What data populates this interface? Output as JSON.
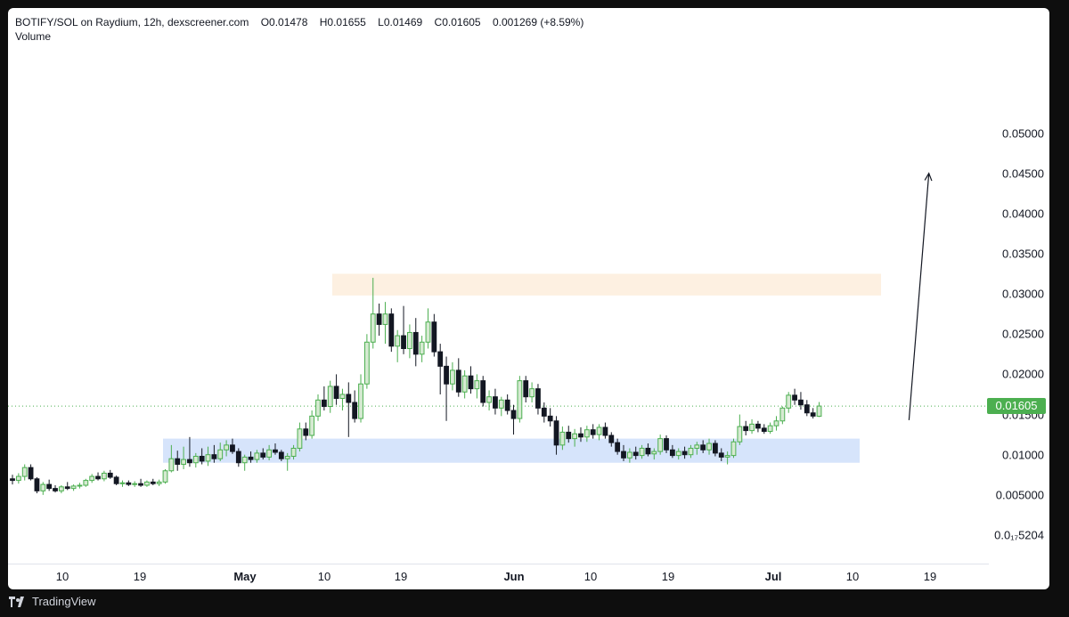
{
  "legend": {
    "symbol": "BOTIFY/SOL on Raydium, 12h, dexscreener.com",
    "open": "O0.01478",
    "high": "H0.01655",
    "low": "L0.01469",
    "close": "C0.01605",
    "change": "0.001269 (+8.59%)",
    "volume_label": "Volume"
  },
  "footer": {
    "brand": "TradingView"
  },
  "colors": {
    "up": "#4caf50",
    "down": "#131722",
    "up_body": "#d6ead2",
    "resistance_zone": "#fdf0e1",
    "support_zone": "#d6e4fb"
  },
  "chart_data": {
    "type": "candlestick",
    "y_ticks": [
      "0.05000",
      "0.04500",
      "0.04000",
      "0.03500",
      "0.03000",
      "0.02500",
      "0.02000",
      "0.01500",
      "0.01000",
      "0.005000",
      "0.0₁₇5204"
    ],
    "y_tick_values": [
      0.05,
      0.045,
      0.04,
      0.035,
      0.03,
      0.025,
      0.02,
      0.015,
      0.01,
      0.005,
      0
    ],
    "x_ticks": [
      {
        "label": "10",
        "major": false
      },
      {
        "label": "19",
        "major": false
      },
      {
        "label": "May",
        "major": true
      },
      {
        "label": "10",
        "major": false
      },
      {
        "label": "19",
        "major": false
      },
      {
        "label": "Jun",
        "major": true
      },
      {
        "label": "10",
        "major": false
      },
      {
        "label": "19",
        "major": false
      },
      {
        "label": "Jul",
        "major": true
      },
      {
        "label": "10",
        "major": false
      },
      {
        "label": "19",
        "major": false
      }
    ],
    "last_price": "0.01605",
    "last_price_value": 0.01605,
    "zones": [
      {
        "name": "resistance",
        "low": 0.0298,
        "high": 0.0325
      },
      {
        "name": "support",
        "low": 0.009,
        "high": 0.012
      }
    ],
    "candles": [
      [
        0.007,
        0.0075,
        0.0063,
        0.0068
      ],
      [
        0.0068,
        0.0077,
        0.0064,
        0.0073
      ],
      [
        0.0073,
        0.0088,
        0.0068,
        0.0084
      ],
      [
        0.0084,
        0.0088,
        0.0068,
        0.007
      ],
      [
        0.007,
        0.0072,
        0.0052,
        0.0055
      ],
      [
        0.0055,
        0.0066,
        0.005,
        0.0063
      ],
      [
        0.0063,
        0.0069,
        0.0055,
        0.0058
      ],
      [
        0.0058,
        0.0062,
        0.0053,
        0.0055
      ],
      [
        0.0055,
        0.0062,
        0.0052,
        0.006
      ],
      [
        0.006,
        0.0066,
        0.0056,
        0.0058
      ],
      [
        0.0058,
        0.0063,
        0.0055,
        0.0061
      ],
      [
        0.0061,
        0.0065,
        0.0058,
        0.0062
      ],
      [
        0.0062,
        0.007,
        0.006,
        0.0068
      ],
      [
        0.0068,
        0.0076,
        0.0065,
        0.0073
      ],
      [
        0.0073,
        0.0078,
        0.0068,
        0.007
      ],
      [
        0.007,
        0.008,
        0.0067,
        0.0077
      ],
      [
        0.0077,
        0.0081,
        0.007,
        0.0072
      ],
      [
        0.0072,
        0.0074,
        0.0062,
        0.0064
      ],
      [
        0.0064,
        0.0068,
        0.006,
        0.0065
      ],
      [
        0.0065,
        0.0068,
        0.0061,
        0.0063
      ],
      [
        0.0063,
        0.0067,
        0.006,
        0.0064
      ],
      [
        0.0064,
        0.007,
        0.006,
        0.0062
      ],
      [
        0.0062,
        0.0068,
        0.006,
        0.0066
      ],
      [
        0.0066,
        0.007,
        0.0062,
        0.0064
      ],
      [
        0.0064,
        0.0069,
        0.0061,
        0.0066
      ],
      [
        0.0066,
        0.0082,
        0.0064,
        0.008
      ],
      [
        0.008,
        0.0112,
        0.0078,
        0.0095
      ],
      [
        0.0095,
        0.0105,
        0.008,
        0.0088
      ],
      [
        0.0088,
        0.011,
        0.0082,
        0.0094
      ],
      [
        0.0094,
        0.0122,
        0.0085,
        0.009
      ],
      [
        0.009,
        0.0102,
        0.0084,
        0.0098
      ],
      [
        0.0098,
        0.0108,
        0.0088,
        0.0092
      ],
      [
        0.0092,
        0.011,
        0.0086,
        0.01
      ],
      [
        0.01,
        0.0112,
        0.009,
        0.0095
      ],
      [
        0.0095,
        0.0115,
        0.0092,
        0.0106
      ],
      [
        0.0106,
        0.0118,
        0.0098,
        0.0112
      ],
      [
        0.0112,
        0.012,
        0.0101,
        0.0104
      ],
      [
        0.0104,
        0.0108,
        0.0085,
        0.009
      ],
      [
        0.009,
        0.01,
        0.008,
        0.0097
      ],
      [
        0.0097,
        0.0104,
        0.009,
        0.0094
      ],
      [
        0.0094,
        0.0106,
        0.009,
        0.0102
      ],
      [
        0.0102,
        0.0108,
        0.0094,
        0.0097
      ],
      [
        0.0097,
        0.0112,
        0.0093,
        0.0106
      ],
      [
        0.0106,
        0.0114,
        0.01,
        0.0103
      ],
      [
        0.0103,
        0.0106,
        0.0092,
        0.0095
      ],
      [
        0.0095,
        0.0102,
        0.008,
        0.0098
      ],
      [
        0.0098,
        0.0112,
        0.0094,
        0.0108
      ],
      [
        0.0108,
        0.014,
        0.0104,
        0.0132
      ],
      [
        0.0132,
        0.014,
        0.0118,
        0.0124
      ],
      [
        0.0124,
        0.0155,
        0.012,
        0.0148
      ],
      [
        0.0148,
        0.0175,
        0.0142,
        0.0168
      ],
      [
        0.0168,
        0.0185,
        0.0155,
        0.016
      ],
      [
        0.016,
        0.0192,
        0.0152,
        0.0185
      ],
      [
        0.0185,
        0.02,
        0.0162,
        0.017
      ],
      [
        0.017,
        0.0182,
        0.0155,
        0.0175
      ],
      [
        0.0175,
        0.019,
        0.0122,
        0.0165
      ],
      [
        0.0165,
        0.018,
        0.014,
        0.0145
      ],
      [
        0.0145,
        0.02,
        0.014,
        0.0188
      ],
      [
        0.0188,
        0.025,
        0.0182,
        0.024
      ],
      [
        0.024,
        0.032,
        0.0232,
        0.0275
      ],
      [
        0.0275,
        0.0288,
        0.0248,
        0.0262
      ],
      [
        0.0262,
        0.029,
        0.0238,
        0.0275
      ],
      [
        0.0275,
        0.0282,
        0.0228,
        0.0235
      ],
      [
        0.0235,
        0.0255,
        0.0215,
        0.0248
      ],
      [
        0.0248,
        0.0285,
        0.0225,
        0.0232
      ],
      [
        0.0232,
        0.0262,
        0.022,
        0.0252
      ],
      [
        0.0252,
        0.027,
        0.021,
        0.0225
      ],
      [
        0.0225,
        0.0248,
        0.0215,
        0.024
      ],
      [
        0.024,
        0.0282,
        0.0232,
        0.0265
      ],
      [
        0.0265,
        0.0275,
        0.0222,
        0.0228
      ],
      [
        0.0228,
        0.0238,
        0.0175,
        0.021
      ],
      [
        0.021,
        0.0222,
        0.0142,
        0.0188
      ],
      [
        0.0188,
        0.0215,
        0.018,
        0.0205
      ],
      [
        0.0205,
        0.022,
        0.0172,
        0.0178
      ],
      [
        0.0178,
        0.0205,
        0.017,
        0.0198
      ],
      [
        0.0198,
        0.021,
        0.0176,
        0.0182
      ],
      [
        0.0182,
        0.02,
        0.017,
        0.0192
      ],
      [
        0.0192,
        0.0198,
        0.016,
        0.0165
      ],
      [
        0.0165,
        0.018,
        0.0155,
        0.0172
      ],
      [
        0.0172,
        0.0182,
        0.015,
        0.0158
      ],
      [
        0.0158,
        0.0172,
        0.0148,
        0.0168
      ],
      [
        0.0168,
        0.0175,
        0.015,
        0.0155
      ],
      [
        0.0155,
        0.0162,
        0.0125,
        0.0145
      ],
      [
        0.0145,
        0.0198,
        0.014,
        0.0192
      ],
      [
        0.0192,
        0.0198,
        0.0165,
        0.0172
      ],
      [
        0.0172,
        0.019,
        0.0165,
        0.0182
      ],
      [
        0.0182,
        0.0188,
        0.015,
        0.0158
      ],
      [
        0.0158,
        0.0165,
        0.014,
        0.0148
      ],
      [
        0.0148,
        0.0158,
        0.0135,
        0.0142
      ],
      [
        0.0142,
        0.0148,
        0.01,
        0.0112
      ],
      [
        0.0112,
        0.0135,
        0.0106,
        0.0128
      ],
      [
        0.0128,
        0.0136,
        0.0115,
        0.012
      ],
      [
        0.012,
        0.0132,
        0.011,
        0.0126
      ],
      [
        0.0126,
        0.0134,
        0.0116,
        0.0122
      ],
      [
        0.0122,
        0.0136,
        0.0116,
        0.0131
      ],
      [
        0.0131,
        0.0138,
        0.012,
        0.0125
      ],
      [
        0.0125,
        0.0138,
        0.0118,
        0.0134
      ],
      [
        0.0134,
        0.014,
        0.012,
        0.0124
      ],
      [
        0.0124,
        0.0128,
        0.011,
        0.0115
      ],
      [
        0.0115,
        0.012,
        0.01,
        0.0104
      ],
      [
        0.0104,
        0.0112,
        0.0092,
        0.0096
      ],
      [
        0.0096,
        0.0108,
        0.009,
        0.0103
      ],
      [
        0.0103,
        0.011,
        0.0094,
        0.0099
      ],
      [
        0.0099,
        0.0112,
        0.0095,
        0.0108
      ],
      [
        0.0108,
        0.0114,
        0.0098,
        0.0101
      ],
      [
        0.0101,
        0.0108,
        0.0094,
        0.0104
      ],
      [
        0.0104,
        0.0125,
        0.01,
        0.012
      ],
      [
        0.012,
        0.0124,
        0.0102,
        0.0106
      ],
      [
        0.0106,
        0.0112,
        0.0096,
        0.0099
      ],
      [
        0.0099,
        0.0108,
        0.0094,
        0.0104
      ],
      [
        0.0104,
        0.011,
        0.0095,
        0.01
      ],
      [
        0.01,
        0.0112,
        0.0096,
        0.0108
      ],
      [
        0.0108,
        0.0116,
        0.01,
        0.0112
      ],
      [
        0.0112,
        0.0118,
        0.0102,
        0.0106
      ],
      [
        0.0106,
        0.012,
        0.01,
        0.0114
      ],
      [
        0.0114,
        0.0118,
        0.0098,
        0.0102
      ],
      [
        0.0102,
        0.0108,
        0.0092,
        0.0097
      ],
      [
        0.0097,
        0.0104,
        0.0088,
        0.0099
      ],
      [
        0.0099,
        0.012,
        0.0096,
        0.0116
      ],
      [
        0.0116,
        0.015,
        0.0112,
        0.0135
      ],
      [
        0.0135,
        0.0142,
        0.0124,
        0.013
      ],
      [
        0.013,
        0.0144,
        0.0126,
        0.0138
      ],
      [
        0.0138,
        0.0142,
        0.0128,
        0.0133
      ],
      [
        0.0133,
        0.0138,
        0.0126,
        0.0129
      ],
      [
        0.0129,
        0.014,
        0.0126,
        0.0136
      ],
      [
        0.0136,
        0.0148,
        0.013,
        0.0142
      ],
      [
        0.0142,
        0.016,
        0.0138,
        0.0158
      ],
      [
        0.0158,
        0.0178,
        0.0152,
        0.0174
      ],
      [
        0.0174,
        0.0182,
        0.0162,
        0.0168
      ],
      [
        0.0168,
        0.0178,
        0.0156,
        0.0162
      ],
      [
        0.0162,
        0.0168,
        0.0148,
        0.0152
      ],
      [
        0.0152,
        0.0158,
        0.0145,
        0.0148
      ],
      [
        0.01478,
        0.01655,
        0.01469,
        0.01605
      ]
    ],
    "annotation": {
      "type": "arrow",
      "from": {
        "candle_offset": 8,
        "price": 0.0143
      },
      "to": {
        "candle_offset": 9.5,
        "price": 0.045
      }
    }
  }
}
